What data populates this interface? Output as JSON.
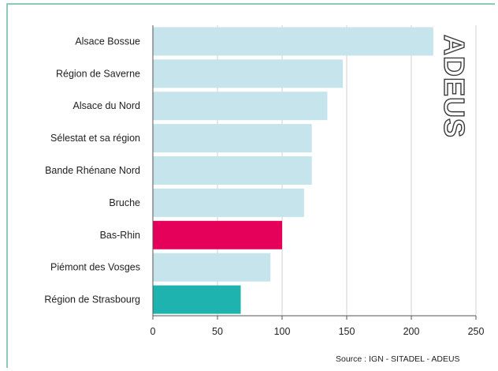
{
  "chart_data": {
    "type": "bar",
    "orientation": "horizontal",
    "categories": [
      "Alsace Bossue",
      "Région de Saverne",
      "Alsace du Nord",
      "Sélestat et sa région",
      "Bande Rhénane Nord",
      "Bruche",
      "Bas-Rhin",
      "Piémont des Vosges",
      "Région de Strasbourg"
    ],
    "values": [
      217,
      147,
      135,
      123,
      123,
      117,
      100,
      91,
      68
    ],
    "bar_colors": [
      "#c5e4ec",
      "#c5e4ec",
      "#c5e4ec",
      "#c5e4ec",
      "#c5e4ec",
      "#c5e4ec",
      "#e5005a",
      "#c5e4ec",
      "#1fb3b0"
    ],
    "xlim": [
      0,
      250
    ],
    "xticks": [
      0,
      50,
      100,
      150,
      200,
      250
    ],
    "grid": "vertical",
    "title": "",
    "xlabel": "",
    "ylabel": ""
  },
  "brand": "ADEUS",
  "source": "Source : IGN - SITADEL - ADEUS",
  "colors": {
    "frame": "#8cc9bd",
    "grid": "#d0d0d0",
    "axis": "#555555"
  }
}
